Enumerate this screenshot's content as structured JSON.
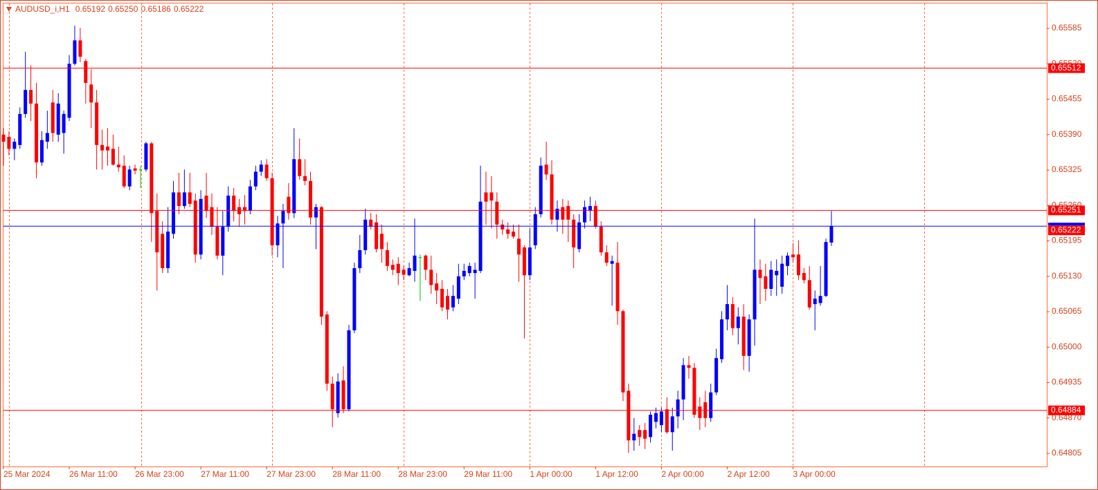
{
  "chart_data": {
    "type": "candlestick",
    "title": "AUDUSD_i,H1",
    "title_values": [
      "0.65192",
      "0.65250",
      "0.65186",
      "0.65222"
    ],
    "x": [
      "25 Mar 2024",
      null,
      null,
      null,
      null,
      null,
      null,
      null,
      null,
      null,
      null,
      null,
      "26 Mar 11:00",
      null,
      null,
      null,
      null,
      null,
      null,
      null,
      null,
      null,
      null,
      null,
      "26 Mar 23:00",
      null,
      null,
      null,
      null,
      null,
      null,
      null,
      null,
      null,
      null,
      null,
      "27 Mar 11:00",
      null,
      null,
      null,
      null,
      null,
      null,
      null,
      null,
      null,
      null,
      null,
      "27 Mar 23:00",
      null,
      null,
      null,
      null,
      null,
      null,
      null,
      null,
      null,
      null,
      null,
      "28 Mar 11:00",
      null,
      null,
      null,
      null,
      null,
      null,
      null,
      null,
      null,
      null,
      null,
      "28 Mar 23:00",
      null,
      null,
      null,
      null,
      null,
      null,
      null,
      null,
      null,
      null,
      null,
      "29 Mar 11:00",
      null,
      null,
      null,
      null,
      null,
      null,
      null,
      null,
      null,
      null,
      null,
      "1 Apr 00:00",
      null,
      null,
      null,
      null,
      null,
      null,
      null,
      null,
      null,
      null,
      null,
      "1 Apr 12:00",
      null,
      null,
      null,
      null,
      null,
      null,
      null,
      null,
      null,
      null,
      null,
      "2 Apr 00:00",
      null,
      null,
      null,
      null,
      null,
      null,
      null,
      null,
      null,
      null,
      null,
      "2 Apr 12:00",
      null,
      null,
      null,
      null,
      null,
      null,
      null,
      null,
      null,
      null,
      null,
      "3 Apr 00:00",
      null,
      null,
      null,
      null,
      null,
      null,
      null
    ],
    "open": [
      0.6539,
      0.65386,
      0.65364,
      0.65371,
      0.65428,
      0.65472,
      0.65447,
      0.65339,
      0.65377,
      0.65449,
      0.6539,
      0.65393,
      0.65421,
      0.6552,
      0.65563,
      0.65525,
      0.65482,
      0.65449,
      0.65371,
      0.65368,
      0.65364,
      0.65335,
      0.65333,
      0.65295,
      0.65328,
      0.65326,
      0.65326,
      0.65374,
      0.6525,
      0.65208,
      0.65145,
      0.65208,
      0.65284,
      0.65259,
      0.65284,
      0.65269,
      0.6517,
      0.65278,
      0.65257,
      0.65221,
      0.65168,
      0.65221,
      0.65278,
      0.65257,
      0.65257,
      0.6525,
      0.65295,
      0.65322,
      0.65335,
      0.6531,
      0.65187,
      0.65227,
      0.65276,
      0.65246,
      0.65345,
      0.65314,
      0.65305,
      0.65238,
      0.65257,
      0.6506,
      0.64933,
      0.64879,
      0.64939,
      0.64886,
      0.65031,
      0.65145,
      0.65178,
      0.65234,
      0.65229,
      0.65208,
      0.65178,
      0.65151,
      0.65153,
      0.65142,
      0.65132,
      0.6514,
      0.65165,
      0.65168,
      0.65142,
      0.65117,
      0.65107,
      0.65094,
      0.65073,
      0.65089,
      0.6513,
      0.65136,
      0.65136,
      0.6514,
      0.65284,
      0.65284,
      0.65267,
      0.65225,
      0.65216,
      0.65212,
      0.65199,
      0.65183,
      0.65132,
      0.65187,
      0.65244,
      0.65335,
      0.65317,
      0.65234,
      0.65257,
      0.65259,
      0.65234,
      0.6518,
      0.65229,
      0.6525,
      0.65259,
      0.65221,
      0.65174,
      0.65153,
      0.65155,
      0.65066,
      0.6492,
      0.64829,
      0.64848,
      0.64848,
      0.64835,
      0.64863,
      0.64857,
      0.64886,
      0.64844,
      0.64873,
      0.64904,
      0.64967,
      0.64962,
      0.64891,
      0.64899,
      0.6487,
      0.64917,
      0.64978,
      0.65051,
      0.65079,
      0.65035,
      0.65056,
      0.64984,
      0.65051,
      0.65142,
      0.6513,
      0.65107,
      0.65132,
      0.65111,
      0.65149,
      0.6517,
      0.6517,
      0.65136,
      0.65123,
      0.65079,
      0.65081,
      0.65094,
      0.65192
    ],
    "high": [
      0.65402,
      0.65396,
      0.65383,
      0.6544,
      0.65542,
      0.65517,
      0.65485,
      0.65396,
      0.65434,
      0.65472,
      0.65466,
      0.65434,
      0.65536,
      0.6559,
      0.65586,
      0.65529,
      0.6551,
      0.65472,
      0.65399,
      0.65402,
      0.6539,
      0.65368,
      0.65352,
      0.65333,
      0.65335,
      0.65333,
      0.65377,
      0.65377,
      0.65282,
      0.65231,
      0.65257,
      0.65305,
      0.6532,
      0.65326,
      0.6532,
      0.65282,
      0.65288,
      0.6532,
      0.65282,
      0.65257,
      0.6525,
      0.65295,
      0.65292,
      0.65272,
      0.65279,
      0.65307,
      0.65333,
      0.65343,
      0.65345,
      0.6532,
      0.65241,
      0.65263,
      0.65301,
      0.65402,
      0.65383,
      0.65345,
      0.65322,
      0.65263,
      0.65259,
      0.65066,
      0.64946,
      0.64952,
      0.64965,
      0.65041,
      0.65155,
      0.65206,
      0.65254,
      0.65246,
      0.65244,
      0.65225,
      0.65193,
      0.65161,
      0.65165,
      0.65149,
      0.65155,
      0.65236,
      0.6517,
      0.6517,
      0.65168,
      0.65136,
      0.65123,
      0.65107,
      0.65114,
      0.65153,
      0.65153,
      0.65155,
      0.65155,
      0.65333,
      0.65322,
      0.65314,
      0.65284,
      0.65234,
      0.65229,
      0.65225,
      0.65225,
      0.65187,
      0.65218,
      0.65257,
      0.65348,
      0.65377,
      0.65343,
      0.65269,
      0.65272,
      0.65269,
      0.65244,
      0.65244,
      0.65269,
      0.65276,
      0.65269,
      0.65231,
      0.65187,
      0.65168,
      0.65193,
      0.65069,
      0.64933,
      0.6487,
      0.64857,
      0.64861,
      0.64882,
      0.64889,
      0.64889,
      0.64908,
      0.64889,
      0.6492,
      0.6498,
      0.64984,
      0.64971,
      0.64908,
      0.6492,
      0.64933,
      0.64997,
      0.65066,
      0.65114,
      0.65092,
      0.65073,
      0.65079,
      0.6506,
      0.65236,
      0.65161,
      0.65153,
      0.65158,
      0.65161,
      0.65168,
      0.65174,
      0.65191,
      0.65196,
      0.65145,
      0.65149,
      0.65104,
      0.65149,
      0.65199,
      0.6525
    ],
    "low": [
      0.65333,
      0.65352,
      0.65343,
      0.65364,
      0.65421,
      0.65415,
      0.6531,
      0.65333,
      0.65364,
      0.65377,
      0.65377,
      0.65355,
      0.65415,
      0.65517,
      0.65523,
      0.65447,
      0.65402,
      0.65326,
      0.65326,
      0.65333,
      0.65333,
      0.65322,
      0.65292,
      0.65288,
      0.65317,
      0.65292,
      0.65322,
      0.65193,
      0.65104,
      0.65136,
      0.65136,
      0.65199,
      0.65244,
      0.65254,
      0.65257,
      0.65155,
      0.65161,
      0.65237,
      0.65206,
      0.65161,
      0.65132,
      0.65212,
      0.65231,
      0.65221,
      0.65225,
      0.65244,
      0.65288,
      0.65314,
      0.65305,
      0.65168,
      0.65165,
      0.65145,
      0.65234,
      0.65237,
      0.65307,
      0.65297,
      0.65225,
      0.6518,
      0.65041,
      0.6492,
      0.64853,
      0.64871,
      0.64879,
      0.64882,
      0.65026,
      0.65136,
      0.6517,
      0.65216,
      0.65174,
      0.65155,
      0.6514,
      0.65132,
      0.65114,
      0.65123,
      0.6513,
      0.6512,
      0.65085,
      0.65123,
      0.65098,
      0.65079,
      0.65066,
      0.65051,
      0.65066,
      0.65079,
      0.65123,
      0.6513,
      0.65089,
      0.65136,
      0.65225,
      0.65218,
      0.65199,
      0.65206,
      0.65199,
      0.65199,
      0.6512,
      0.65016,
      0.65123,
      0.6518,
      0.65238,
      0.65307,
      0.65225,
      0.65212,
      0.65208,
      0.65193,
      0.65145,
      0.65174,
      0.65218,
      0.65231,
      0.65218,
      0.65168,
      0.65149,
      0.65076,
      0.65041,
      0.64901,
      0.64806,
      0.6481,
      0.64819,
      0.64813,
      0.64825,
      0.64851,
      0.64844,
      0.64841,
      0.6481,
      0.64851,
      0.64866,
      0.64942,
      0.6487,
      0.64848,
      0.64853,
      0.64863,
      0.64912,
      0.64971,
      0.65031,
      0.65022,
      0.65005,
      0.64958,
      0.64955,
      0.65003,
      0.65079,
      0.65085,
      0.65094,
      0.65094,
      0.65098,
      0.65132,
      0.65155,
      0.65123,
      0.65117,
      0.65069,
      0.65031,
      0.65076,
      0.65092,
      0.65186
    ],
    "close": [
      0.65377,
      0.65364,
      0.65377,
      0.65428,
      0.65472,
      0.65447,
      0.65339,
      0.6538,
      0.65393,
      0.65393,
      0.65447,
      0.65428,
      0.6552,
      0.65563,
      0.65533,
      0.65485,
      0.65449,
      0.65371,
      0.65361,
      0.65361,
      0.65335,
      0.6533,
      0.65295,
      0.65326,
      0.65324,
      0.65326,
      0.65374,
      0.65246,
      0.65174,
      0.65145,
      0.65212,
      0.65284,
      0.65259,
      0.65284,
      0.65263,
      0.6517,
      0.65272,
      0.6525,
      0.65221,
      0.65168,
      0.65221,
      0.65278,
      0.6525,
      0.65244,
      0.6525,
      0.65295,
      0.65322,
      0.65335,
      0.6531,
      0.65187,
      0.65227,
      0.6525,
      0.65246,
      0.65345,
      0.65314,
      0.65305,
      0.65238,
      0.65257,
      0.65056,
      0.64933,
      0.64886,
      0.64937,
      0.64886,
      0.65031,
      0.65145,
      0.65178,
      0.65234,
      0.65221,
      0.6518,
      0.6518,
      0.65149,
      0.65142,
      0.65136,
      0.65133,
      0.65145,
      0.65168,
      0.65165,
      0.65142,
      0.65114,
      0.65104,
      0.65073,
      0.65069,
      0.65094,
      0.6513,
      0.6514,
      0.65149,
      0.65142,
      0.65267,
      0.65267,
      0.65269,
      0.65225,
      0.65216,
      0.65208,
      0.65203,
      0.6517,
      0.65132,
      0.65183,
      0.65244,
      0.65333,
      0.65317,
      0.65234,
      0.65254,
      0.65234,
      0.65234,
      0.65183,
      0.65229,
      0.65257,
      0.65259,
      0.65221,
      0.65174,
      0.65155,
      0.65158,
      0.65066,
      0.64917,
      0.64829,
      0.64841,
      0.64835,
      0.64832,
      0.64876,
      0.64879,
      0.64882,
      0.64844,
      0.64873,
      0.64904,
      0.64967,
      0.64962,
      0.64876,
      0.6487,
      0.6487,
      0.64917,
      0.6498,
      0.65051,
      0.65079,
      0.65035,
      0.65056,
      0.64984,
      0.65051,
      0.65142,
      0.65127,
      0.65107,
      0.65142,
      0.6514,
      0.65153,
      0.65168,
      0.65165,
      0.65132,
      0.65123,
      0.65073,
      0.65089,
      0.65094,
      0.65193,
      0.65222
    ],
    "up_color": "#0000ff",
    "down_color": "#ff0000",
    "doji_color": "#00c000",
    "ylim": [
      0.64781,
      0.65632
    ],
    "yticks": [
      0.65585,
      {
        "value": 0.6552,
        "label": "0.65520"
      },
      0.65455,
      {
        "value": 0.6539,
        "label": "0.65390"
      },
      0.65325,
      {
        "value": 0.6526,
        "label": "0.65260"
      },
      0.65195,
      {
        "value": 0.6513,
        "label": "0.65130"
      },
      0.65065,
      {
        "value": 0.65,
        "label": "0.65000"
      },
      0.64935,
      {
        "value": 0.6487,
        "label": "0.64870"
      },
      0.64805
    ],
    "levels": [
      {
        "value": 0.65512,
        "color": "#ff0000"
      },
      {
        "value": 0.65251,
        "color": "#ff0000"
      },
      {
        "value": 0.64884,
        "color": "#ff0000"
      }
    ],
    "bid": {
      "value": 0.65222,
      "color": "#0000ff"
    }
  }
}
